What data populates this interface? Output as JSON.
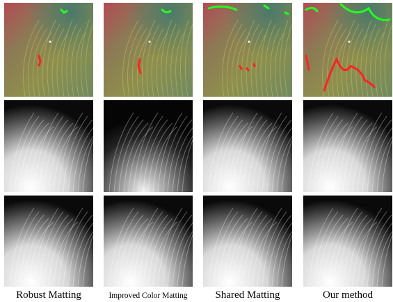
{
  "figure": {
    "columns": [
      {
        "caption": "Robust Matting"
      },
      {
        "caption": "Improved Color Matting"
      },
      {
        "caption": "Shared Matting"
      },
      {
        "caption": "Our method"
      }
    ]
  }
}
